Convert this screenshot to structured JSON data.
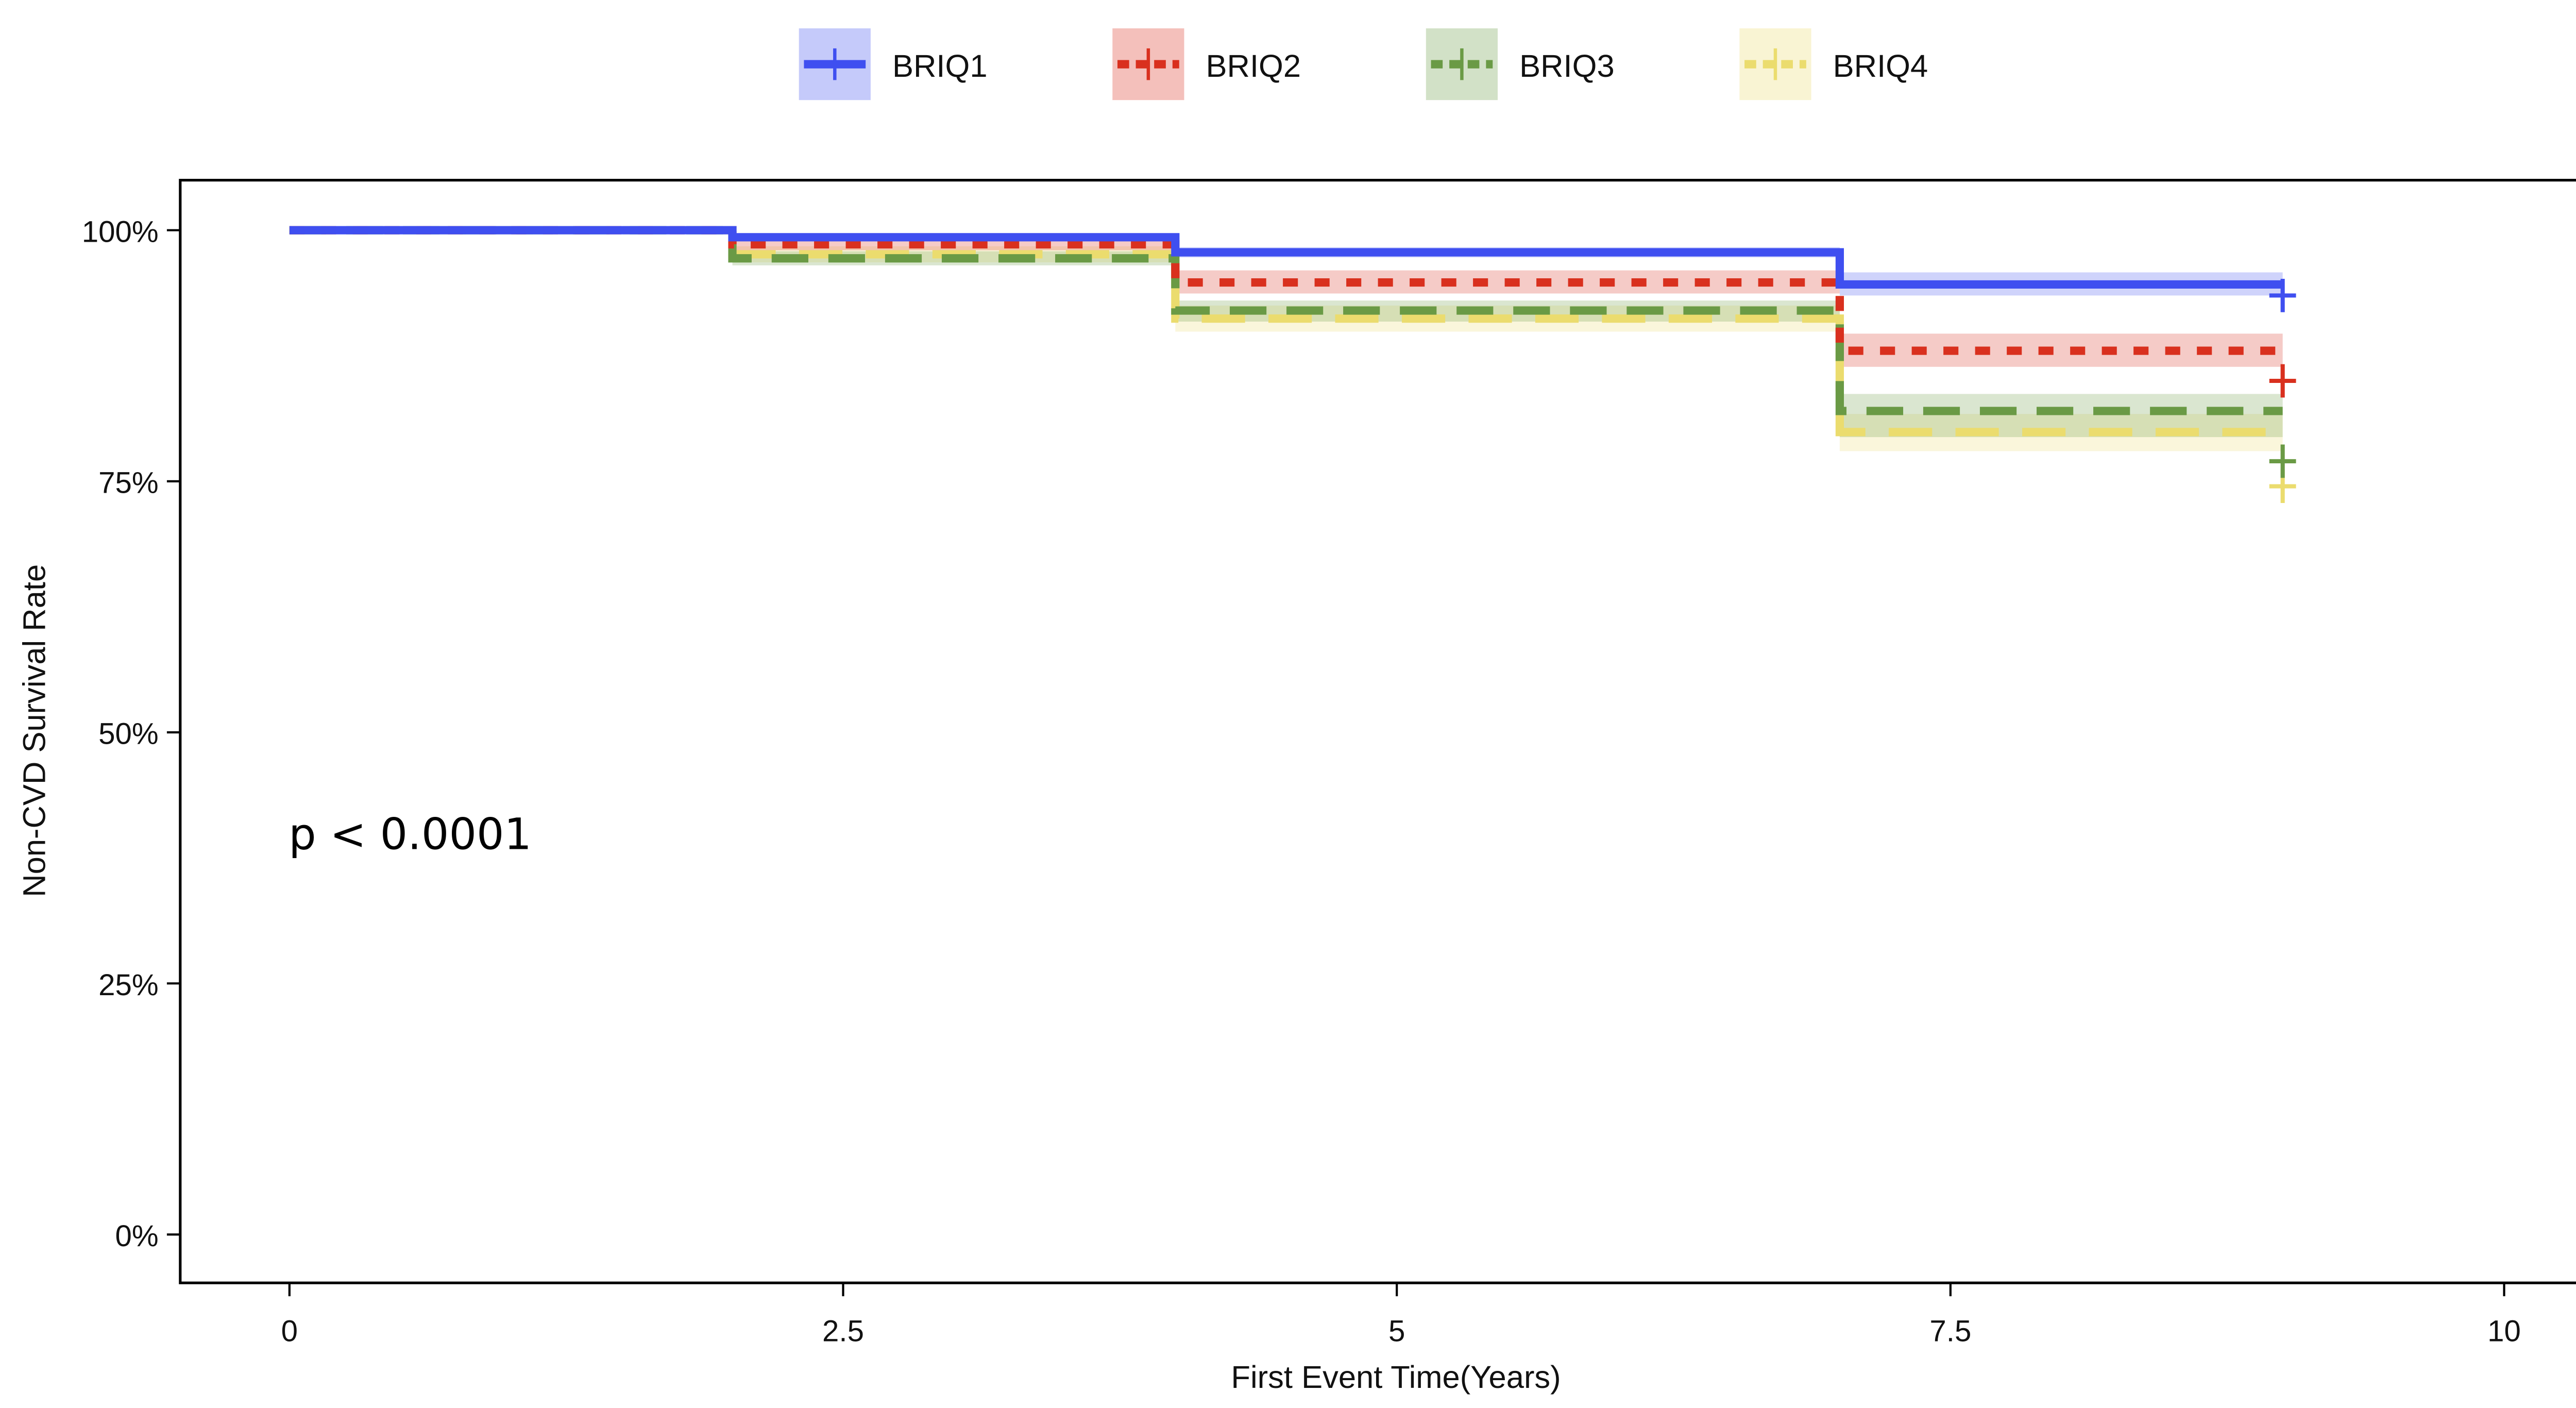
{
  "chart_data": {
    "type": "line",
    "subtype": "kaplan-meier step curves with confidence bands",
    "xlabel": "First Event Time(Years)",
    "ylabel": "Non-CVD Survival Rate",
    "xlim": [
      -0.5,
      10.5
    ],
    "ylim": [
      -5,
      105
    ],
    "xticks": [
      "0",
      "2.5",
      "5",
      "7.5",
      "10"
    ],
    "xtick_values": [
      0,
      2.5,
      5,
      7.5,
      10
    ],
    "yticks": [
      "0%",
      "25%",
      "50%",
      "75%",
      "100%"
    ],
    "ytick_values": [
      0,
      25,
      50,
      75,
      100
    ],
    "grid": false,
    "legend_position": "top",
    "annotation": "p < 0.0001",
    "series": [
      {
        "name": "BRIQ1",
        "color": "#3f4ff0",
        "dash": "solid",
        "x": [
          0,
          2,
          4,
          7,
          9
        ],
        "y": [
          100,
          99.3,
          97.8,
          94.6,
          94.6
        ],
        "lower": [
          100,
          99.0,
          97.3,
          93.5,
          93.5
        ],
        "upper": [
          100,
          99.6,
          98.3,
          95.8,
          95.8
        ],
        "censor": [
          [
            9,
            93.5
          ]
        ]
      },
      {
        "name": "BRIQ2",
        "color": "#d9301e",
        "dash": "dotted",
        "x": [
          0,
          2,
          4,
          7,
          9
        ],
        "y": [
          100,
          98.6,
          94.8,
          88.0,
          88.0
        ],
        "lower": [
          100,
          98.0,
          93.7,
          86.4,
          86.4
        ],
        "upper": [
          100,
          99.2,
          96.0,
          89.7,
          89.7
        ],
        "censor": [
          [
            9,
            85
          ]
        ]
      },
      {
        "name": "BRIQ3",
        "color": "#6a9a45",
        "dash": "dashed",
        "x": [
          0,
          2,
          4,
          7,
          9
        ],
        "y": [
          100,
          97.2,
          92.0,
          82.0,
          82.0
        ],
        "lower": [
          100,
          96.5,
          90.9,
          79.4,
          79.4
        ],
        "upper": [
          100,
          97.9,
          93.0,
          83.7,
          83.7
        ],
        "censor": [
          [
            9,
            77
          ]
        ]
      },
      {
        "name": "BRIQ4",
        "color": "#ebdc6e",
        "dash": "longdash",
        "x": [
          0,
          2,
          4,
          7,
          9
        ],
        "y": [
          100,
          97.6,
          91.2,
          79.9,
          79.9
        ],
        "lower": [
          100,
          96.8,
          89.9,
          78.0,
          78.0
        ],
        "upper": [
          100,
          98.4,
          92.5,
          81.7,
          81.7
        ],
        "censor": [
          [
            9,
            74.5
          ]
        ]
      }
    ]
  }
}
